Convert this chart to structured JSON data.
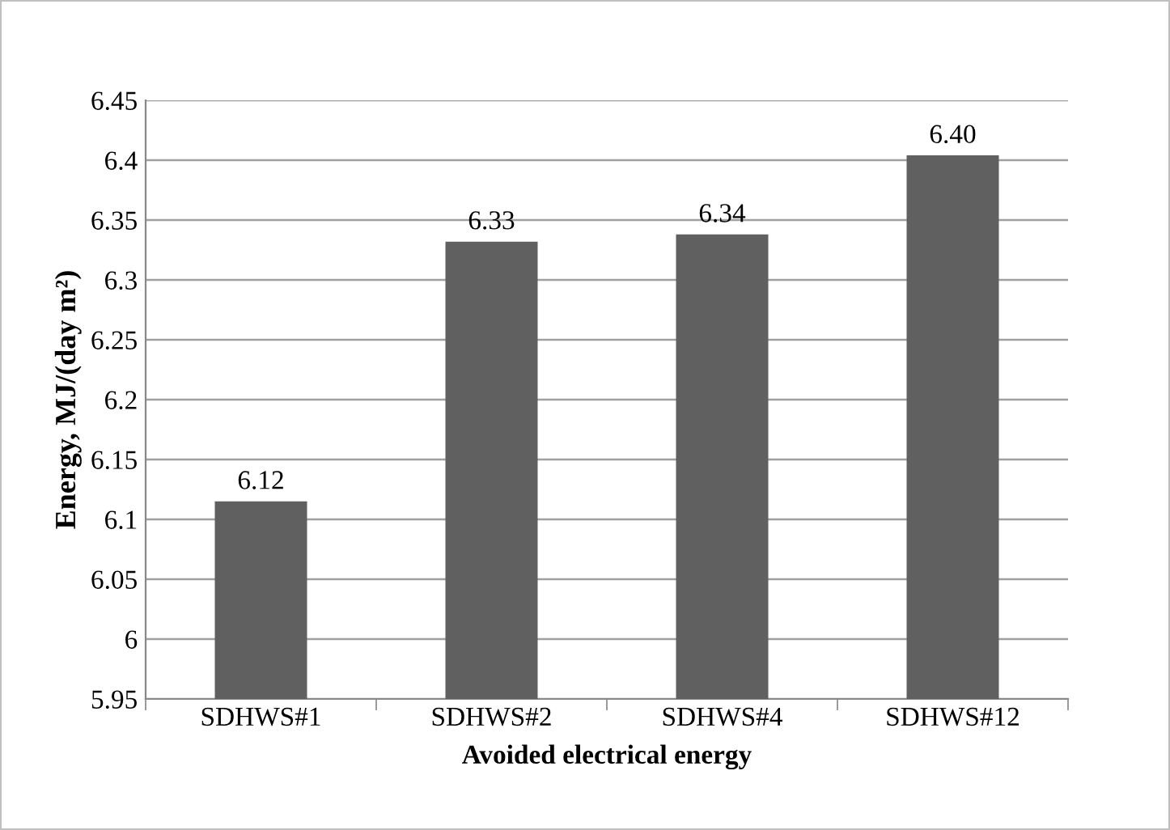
{
  "chart_data": {
    "type": "bar",
    "categories": [
      "SDHWS#1",
      "SDHWS#2",
      "SDHWS#4",
      "SDHWS#12"
    ],
    "values": [
      6.115,
      6.332,
      6.338,
      6.404
    ],
    "value_labels": [
      "6.12",
      "6.33",
      "6.34",
      "6.40"
    ],
    "color": "#606060",
    "xlabel": "Avoided electrical energy",
    "ylabel": "Energy, MJ/(day m²)",
    "ylim": [
      5.95,
      6.45
    ],
    "yticks": [
      5.95,
      6,
      6.05,
      6.1,
      6.15,
      6.2,
      6.25,
      6.3,
      6.35,
      6.4,
      6.45
    ],
    "grid": "y"
  }
}
